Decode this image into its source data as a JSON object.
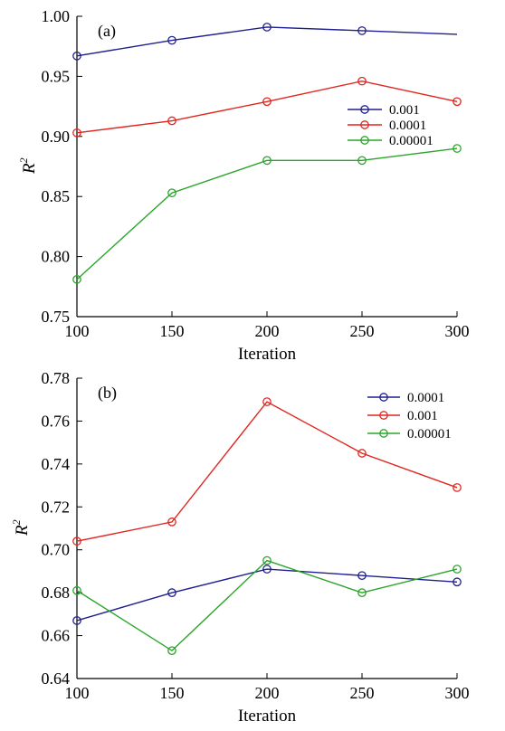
{
  "chart_data": [
    {
      "type": "line",
      "panel_label": "(a)",
      "xlabel": "Iteration",
      "ylabel": "R",
      "ylabel_superscript": "2",
      "x": [
        100,
        150,
        200,
        250,
        300
      ],
      "xlim": [
        100,
        300
      ],
      "ylim": [
        0.75,
        1.0
      ],
      "x_ticks": [
        "100",
        "150",
        "200",
        "250",
        "300"
      ],
      "y_ticks": [
        "0.75",
        "0.80",
        "0.85",
        "0.90",
        "0.95",
        "1.00"
      ],
      "grid": false,
      "legend_position": "right",
      "series": [
        {
          "name": "0.001",
          "color": "#1f1f8f",
          "values": [
            0.967,
            0.98,
            0.991,
            0.988,
            0.985
          ],
          "markers": [
            true,
            true,
            true,
            true,
            false
          ]
        },
        {
          "name": "0.0001",
          "color": "#e0261f",
          "values": [
            0.903,
            0.913,
            0.929,
            0.946,
            0.929
          ],
          "markers": [
            true,
            true,
            true,
            true,
            true
          ]
        },
        {
          "name": "0.00001",
          "color": "#2aa52a",
          "values": [
            0.781,
            0.853,
            0.88,
            0.88,
            0.89
          ],
          "markers": [
            true,
            true,
            true,
            true,
            true
          ]
        }
      ]
    },
    {
      "type": "line",
      "panel_label": "(b)",
      "xlabel": "Iteration",
      "ylabel": "R",
      "ylabel_superscript": "2",
      "x": [
        100,
        150,
        200,
        250,
        300
      ],
      "xlim": [
        100,
        300
      ],
      "ylim": [
        0.64,
        0.78
      ],
      "x_ticks": [
        "100",
        "150",
        "200",
        "250",
        "300"
      ],
      "y_ticks": [
        "0.64",
        "0.66",
        "0.68",
        "0.70",
        "0.72",
        "0.74",
        "0.76",
        "0.78"
      ],
      "grid": false,
      "legend_position": "top-right",
      "series": [
        {
          "name": "0.0001",
          "color": "#1f1f8f",
          "values": [
            0.667,
            0.68,
            0.691,
            0.688,
            0.685
          ],
          "markers": [
            true,
            true,
            true,
            true,
            true
          ]
        },
        {
          "name": "0.001",
          "color": "#e0261f",
          "values": [
            0.704,
            0.713,
            0.769,
            0.745,
            0.729
          ],
          "markers": [
            true,
            true,
            true,
            true,
            true
          ]
        },
        {
          "name": "0.00001",
          "color": "#2aa52a",
          "values": [
            0.681,
            0.653,
            0.695,
            0.68,
            0.691
          ],
          "markers": [
            true,
            true,
            true,
            true,
            true
          ]
        }
      ]
    }
  ]
}
